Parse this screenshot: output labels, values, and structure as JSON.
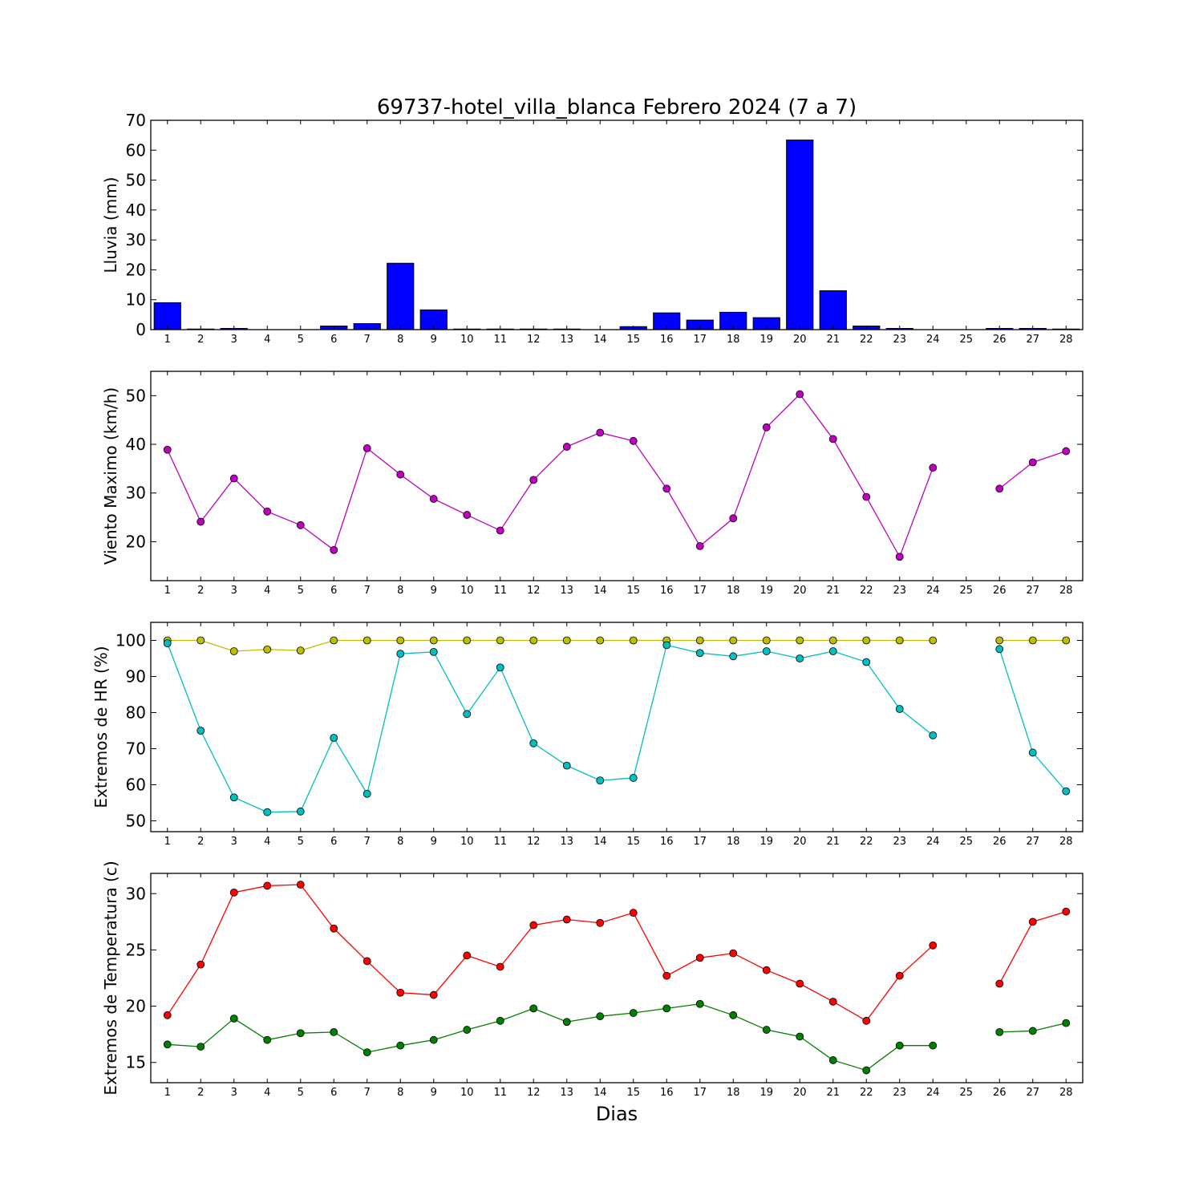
{
  "title": "69737-hotel_villa_blanca Febrero 2024  (7 a 7)",
  "xlabel": "Dias",
  "chart_data": [
    {
      "type": "bar",
      "ylabel": "Lluvia (mm)",
      "ylim": [
        0,
        70
      ],
      "yticks": [
        0,
        10,
        20,
        30,
        40,
        50,
        60,
        70
      ],
      "x": [
        1,
        2,
        3,
        4,
        5,
        6,
        7,
        8,
        9,
        10,
        11,
        12,
        13,
        14,
        15,
        16,
        17,
        18,
        19,
        20,
        21,
        22,
        23,
        24,
        25,
        26,
        27,
        28
      ],
      "series": [
        {
          "color": "#0000ff",
          "values": [
            9,
            0.2,
            0.4,
            0,
            0,
            1.2,
            2,
            22.2,
            6.6,
            0.2,
            0.2,
            0.2,
            0.2,
            0,
            1,
            5.6,
            3.2,
            5.8,
            4,
            63.4,
            13,
            1.2,
            0.4,
            0,
            0,
            0.4,
            0.4,
            0.2
          ]
        }
      ]
    },
    {
      "type": "line",
      "ylabel": "Viento Maximo (km/h)",
      "ylim": [
        12,
        55
      ],
      "yticks": [
        20,
        30,
        40,
        50
      ],
      "x": [
        1,
        2,
        3,
        4,
        5,
        6,
        7,
        8,
        9,
        10,
        11,
        12,
        13,
        14,
        15,
        16,
        17,
        18,
        19,
        20,
        21,
        22,
        23,
        24,
        25,
        26,
        27,
        28
      ],
      "series": [
        {
          "color": "#bf00bf",
          "values": [
            38.9,
            24.1,
            33,
            26.2,
            23.4,
            18.3,
            39.2,
            33.8,
            28.8,
            25.5,
            22.3,
            32.7,
            39.5,
            42.4,
            40.7,
            30.9,
            19.1,
            24.8,
            43.5,
            50.3,
            41.1,
            29.2,
            16.9,
            35.2,
            null,
            30.9,
            36.3,
            38.6
          ]
        }
      ]
    },
    {
      "type": "line",
      "ylabel": "Extremos de HR (%)",
      "ylim": [
        47,
        105
      ],
      "yticks": [
        50,
        60,
        70,
        80,
        90,
        100
      ],
      "x": [
        1,
        2,
        3,
        4,
        5,
        6,
        7,
        8,
        9,
        10,
        11,
        12,
        13,
        14,
        15,
        16,
        17,
        18,
        19,
        20,
        21,
        22,
        23,
        24,
        25,
        26,
        27,
        28
      ],
      "series": [
        {
          "color": "#bfbf00",
          "values": [
            100,
            100,
            97,
            97.5,
            97.2,
            100,
            100,
            100,
            100,
            100,
            100,
            100,
            100,
            100,
            100,
            100,
            100,
            100,
            100,
            100,
            100,
            100,
            100,
            100,
            null,
            100,
            100,
            100
          ]
        },
        {
          "color": "#00bfbf",
          "values": [
            99.2,
            75,
            56.5,
            52.4,
            52.6,
            73,
            57.5,
            96.3,
            96.8,
            79.6,
            92.5,
            71.5,
            65.3,
            61.2,
            61.9,
            98.7,
            96.5,
            95.6,
            97,
            95,
            97,
            94,
            81,
            73.7,
            null,
            97.6,
            68.9,
            58.2
          ]
        }
      ]
    },
    {
      "type": "line",
      "ylabel": "Extremos de Temperatura (c)",
      "ylim": [
        13.2,
        31.8
      ],
      "yticks": [
        15,
        20,
        25,
        30
      ],
      "x": [
        1,
        2,
        3,
        4,
        5,
        6,
        7,
        8,
        9,
        10,
        11,
        12,
        13,
        14,
        15,
        16,
        17,
        18,
        19,
        20,
        21,
        22,
        23,
        24,
        25,
        26,
        27,
        28
      ],
      "series": [
        {
          "color": "#ff0000",
          "values": [
            19.2,
            23.7,
            30.1,
            30.7,
            30.8,
            26.9,
            24,
            21.2,
            21,
            24.5,
            23.5,
            27.2,
            27.7,
            27.4,
            28.3,
            22.7,
            24.3,
            24.7,
            23.2,
            22,
            20.4,
            18.7,
            22.7,
            25.4,
            null,
            22,
            27.5,
            28.4
          ]
        },
        {
          "color": "#008000",
          "values": [
            16.6,
            16.4,
            18.9,
            17,
            17.6,
            17.7,
            15.9,
            16.5,
            17,
            17.9,
            18.7,
            19.8,
            18.6,
            19.1,
            19.4,
            19.8,
            20.2,
            19.2,
            17.9,
            17.3,
            15.2,
            14.3,
            16.5,
            16.5,
            null,
            17.7,
            17.8,
            18.5
          ]
        }
      ]
    }
  ]
}
